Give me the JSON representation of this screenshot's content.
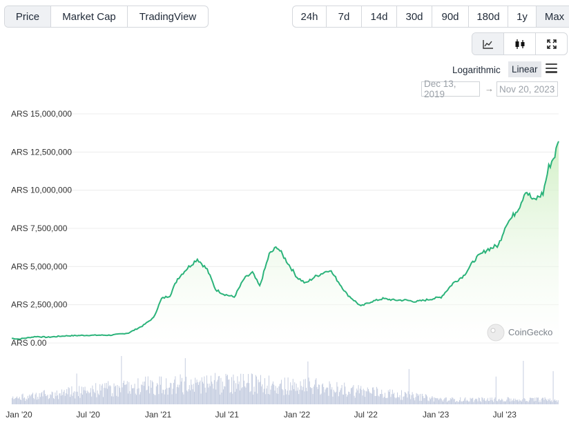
{
  "tabs": [
    "Price",
    "Market Cap",
    "TradingView"
  ],
  "ranges": [
    "24h",
    "7d",
    "14d",
    "30d",
    "90d",
    "180d",
    "1y",
    "Max"
  ],
  "active_range": "Max",
  "active_tab": "Price",
  "chart_type_buttons": [
    "line-chart-icon",
    "candlestick-icon",
    "fullscreen-icon"
  ],
  "scale": {
    "logarithmic": "Logarithmic",
    "linear": "Linear",
    "active": "Linear"
  },
  "date_range": {
    "from": "Dec 13, 2019",
    "arrow": "→",
    "to": "Nov 20, 2023"
  },
  "watermark": "CoinGecko",
  "colors": {
    "line": "#2bb37a",
    "fill_top": "#d6f0c8",
    "volume": "#c5cde0",
    "grid": "#ececec"
  },
  "chart_data": {
    "type": "area",
    "title": "",
    "xlabel": "",
    "ylabel": "",
    "y_tick_labels": [
      "ARS 0.00",
      "ARS 2,500,000",
      "ARS 5,000,000",
      "ARS 7,500,000",
      "ARS 10,000,000",
      "ARS 12,500,000",
      "ARS 15,000,000"
    ],
    "y_ticks": [
      0,
      2500000,
      5000000,
      7500000,
      10000000,
      12500000,
      15000000
    ],
    "ylim": [
      0,
      15000000
    ],
    "x_tick_labels": [
      "Jan '20",
      "Jul '20",
      "Jan '21",
      "Jul '21",
      "Jan '22",
      "Jul '22",
      "Jan '23",
      "Jul '23"
    ],
    "x_ticks": [
      "2020-01-01",
      "2020-07-01",
      "2021-01-01",
      "2021-07-01",
      "2022-01-01",
      "2022-07-01",
      "2023-01-01",
      "2023-07-01"
    ],
    "xlim": [
      "2019-12-13",
      "2023-11-20"
    ],
    "grid": true,
    "series": [
      {
        "x": [
          "2019-12-13",
          "2020-01-01",
          "2020-02-15",
          "2020-03-15",
          "2020-05-01",
          "2020-07-01",
          "2020-09-01",
          "2020-10-15",
          "2020-11-20",
          "2020-12-20",
          "2021-01-10",
          "2021-02-01",
          "2021-02-21",
          "2021-03-15",
          "2021-04-14",
          "2021-05-10",
          "2021-06-01",
          "2021-06-22",
          "2021-07-20",
          "2021-08-15",
          "2021-09-06",
          "2021-09-25",
          "2021-10-20",
          "2021-11-10",
          "2021-12-01",
          "2022-01-01",
          "2022-01-24",
          "2022-02-15",
          "2022-03-28",
          "2022-04-20",
          "2022-05-12",
          "2022-06-18",
          "2022-07-15",
          "2022-08-15",
          "2022-09-15",
          "2022-10-15",
          "2022-11-10",
          "2022-12-15",
          "2023-01-15",
          "2023-02-15",
          "2023-03-15",
          "2023-04-15",
          "2023-05-15",
          "2023-06-15",
          "2023-07-05",
          "2023-07-20",
          "2023-08-10",
          "2023-08-25",
          "2023-09-15",
          "2023-10-10",
          "2023-10-25",
          "2023-11-10",
          "2023-11-20"
        ],
        "y": [
          300000,
          250000,
          420000,
          370000,
          460000,
          500000,
          510000,
          650000,
          1100000,
          1650000,
          2900000,
          3100000,
          4200000,
          4800000,
          5500000,
          4800000,
          3500000,
          3200000,
          3000000,
          4200000,
          4600000,
          3700000,
          5800000,
          6300000,
          5500000,
          4300000,
          3900000,
          4300000,
          4800000,
          4000000,
          3200000,
          2400000,
          2700000,
          2900000,
          2800000,
          2800000,
          2700000,
          2850000,
          3000000,
          3900000,
          4400000,
          5500000,
          6100000,
          6400000,
          7800000,
          8200000,
          9000000,
          10000000,
          9300000,
          9800000,
          11500000,
          12300000,
          13200000
        ]
      }
    ],
    "volume_series": {
      "description_visible": false
    }
  }
}
